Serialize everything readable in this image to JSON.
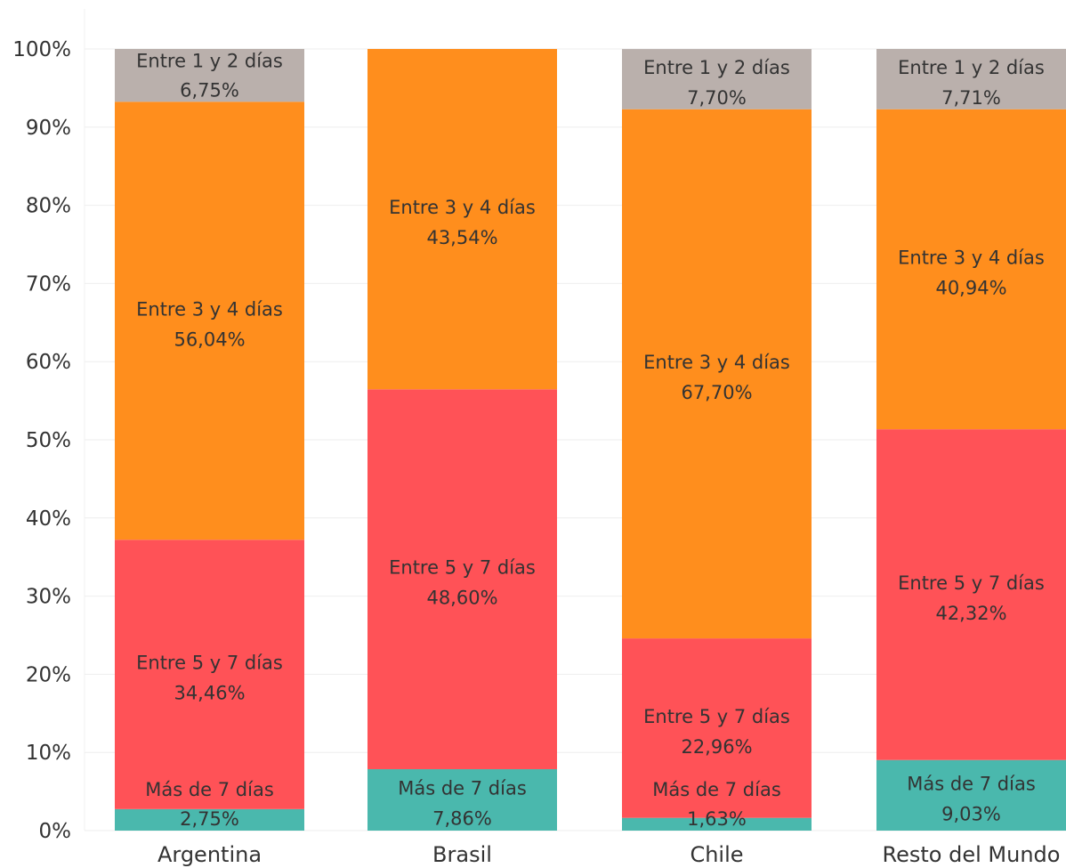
{
  "chart_data": {
    "type": "bar",
    "stacked": true,
    "normalized": true,
    "title": "",
    "xlabel": "",
    "ylabel": "",
    "ylim": [
      0,
      100
    ],
    "y_ticks": [
      "0%",
      "10%",
      "20%",
      "30%",
      "40%",
      "50%",
      "60%",
      "70%",
      "80%",
      "90%",
      "100%"
    ],
    "grid": true,
    "categories": [
      "Argentina",
      "Brasil",
      "Chile",
      "Resto del Mundo"
    ],
    "series": [
      {
        "name": "Más de 7 días",
        "color": "#4AB8AD",
        "values": [
          2.75,
          7.86,
          1.63,
          9.03
        ],
        "labels": [
          "2,75%",
          "7,86%",
          "1,63%",
          "9,03%"
        ]
      },
      {
        "name": "Entre 5 y 7 días",
        "color": "#FF5257",
        "values": [
          34.46,
          48.6,
          22.96,
          42.32
        ],
        "labels": [
          "34,46%",
          "48,60%",
          "22,96%",
          "42,32%"
        ]
      },
      {
        "name": "Entre 3 y 4 días",
        "color": "#FF8E1D",
        "values": [
          56.04,
          43.54,
          67.7,
          40.94
        ],
        "labels": [
          "56,04%",
          "43,54%",
          "67,70%",
          "40,94%"
        ]
      },
      {
        "name": "Entre 1 y 2 días",
        "color": "#BAB0AC",
        "values": [
          6.75,
          null,
          7.7,
          7.71
        ],
        "labels": [
          "6,75%",
          null,
          "7,70%",
          "7,71%"
        ]
      }
    ]
  }
}
